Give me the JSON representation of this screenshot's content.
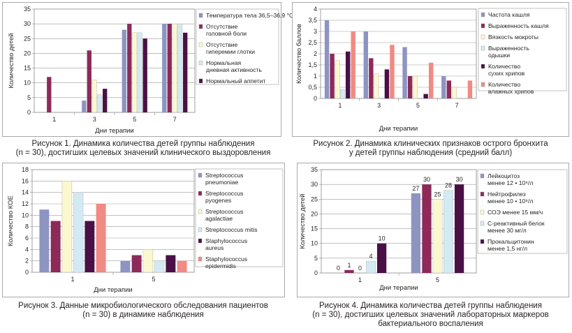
{
  "palette": [
    "#8e94c2",
    "#8c2a5a",
    "#fbf8d0",
    "#d4eaf2",
    "#4a1046",
    "#f08a82"
  ],
  "chart_data": [
    {
      "type": "bar",
      "title": "",
      "xlabel": "Дни терапии",
      "ylabel": "Количество детей",
      "ylim": [
        0,
        35
      ],
      "yticks": [
        "0",
        "5",
        "10",
        "15",
        "20",
        "25",
        "30",
        "35"
      ],
      "categories": [
        "1",
        "3",
        "5",
        "7"
      ],
      "series": [
        {
          "name": "Температура тела 36,5–36,9 °C",
          "values": [
            0,
            4,
            28,
            30
          ]
        },
        {
          "name": "Отсутствие головной боли",
          "values": [
            12,
            21,
            30,
            30
          ]
        },
        {
          "name": "Отсутствие гиперемии глотки",
          "values": [
            0,
            11,
            27,
            30
          ]
        },
        {
          "name": "Нормальная дневная активность",
          "values": [
            0,
            6,
            27,
            30
          ]
        },
        {
          "name": "Нормальный аппетит",
          "values": [
            0,
            8,
            25,
            27
          ]
        }
      ],
      "legend": "right",
      "grid": true,
      "caption": [
        "Рисунок 1.  Динамика количества детей группы наблюдения",
        "(n = 30), достигших целевых значений клинического выздоровления"
      ]
    },
    {
      "type": "bar",
      "title": "",
      "xlabel": "Дни терапии",
      "ylabel": "Количество баллов",
      "ylim": [
        0,
        4
      ],
      "yticks": [
        "0",
        "0,5",
        "1",
        "1,5",
        "2",
        "2,5",
        "3",
        "3,5",
        "4"
      ],
      "categories": [
        "1",
        "3",
        "5",
        "7"
      ],
      "series": [
        {
          "name": "Частота кашля",
          "values": [
            3.5,
            3.0,
            2.3,
            1.0
          ]
        },
        {
          "name": "Выраженность кашля",
          "values": [
            2.0,
            1.8,
            1.0,
            0.8
          ]
        },
        {
          "name": "Вязкость мокроты",
          "values": [
            1.7,
            1.1,
            1.0,
            0.5
          ]
        },
        {
          "name": "Выраженность одышки",
          "values": [
            0.4,
            0,
            0,
            0
          ]
        },
        {
          "name": "Количество сухих хрипов",
          "values": [
            2.1,
            1.3,
            0.2,
            0
          ]
        },
        {
          "name": "Количество влажных хрипов",
          "values": [
            3.0,
            2.4,
            1.6,
            0.8
          ]
        }
      ],
      "legend": "right",
      "grid": true,
      "caption": [
        "Рисунок 2.  Динамика клинических признаков острого бронхита",
        "у детей группы наблюдения (средний балл)"
      ]
    },
    {
      "type": "bar",
      "title": "",
      "xlabel": "Дни терапии",
      "ylabel": "Количество КОЕ",
      "ylim": [
        0,
        18
      ],
      "yticks": [
        "0",
        "2",
        "4",
        "6",
        "8",
        "10",
        "12",
        "14",
        "16",
        "18"
      ],
      "categories": [
        "1",
        "5"
      ],
      "series": [
        {
          "name": "Streptococcus pneumoniae",
          "values": [
            11,
            2
          ]
        },
        {
          "name": "Streptococcus pyogenes",
          "values": [
            9,
            3
          ]
        },
        {
          "name": "Streptococcus agalactiae",
          "values": [
            16,
            4
          ]
        },
        {
          "name": "Streptococcus mitis",
          "values": [
            14,
            2
          ]
        },
        {
          "name": "Staphylococcus aureus",
          "values": [
            9,
            3
          ]
        },
        {
          "name": "Staphylococcus epidermidis",
          "values": [
            12,
            2
          ]
        }
      ],
      "legend": "right",
      "grid": true,
      "caption": [
        "Рисунок 3.  Данные микробиологического обследования пациентов",
        "(n = 30) в динамике наблюдения"
      ]
    },
    {
      "type": "bar",
      "title": "",
      "xlabel": "Дни терапии",
      "ylabel": "Количество детей",
      "ylim": [
        0,
        35
      ],
      "yticks": [
        "0",
        "5",
        "10",
        "15",
        "20",
        "25",
        "30",
        "35"
      ],
      "categories": [
        "1",
        "5"
      ],
      "data_labels": true,
      "series": [
        {
          "name": "Лейкоцитоз менее 12 • 10⁹/л",
          "values": [
            0,
            27
          ]
        },
        {
          "name": "Нейтрофилез менее 10 • 10⁹/л",
          "values": [
            1,
            30
          ]
        },
        {
          "name": "СОЭ менее 15 мм/ч",
          "values": [
            0,
            25
          ]
        },
        {
          "name": "С-реактивный белок менее 30 мг/л",
          "values": [
            4,
            28
          ]
        },
        {
          "name": "Прокальцитонин менее 1,5 нг/л",
          "values": [
            10,
            30
          ]
        }
      ],
      "legend": "right",
      "grid": true,
      "caption": [
        "Рисунок 4.  Динамика количества детей группы наблюдения",
        "(n = 30), достигших целевых значений лабораторных маркеров",
        "бактериального воспаления"
      ]
    }
  ]
}
